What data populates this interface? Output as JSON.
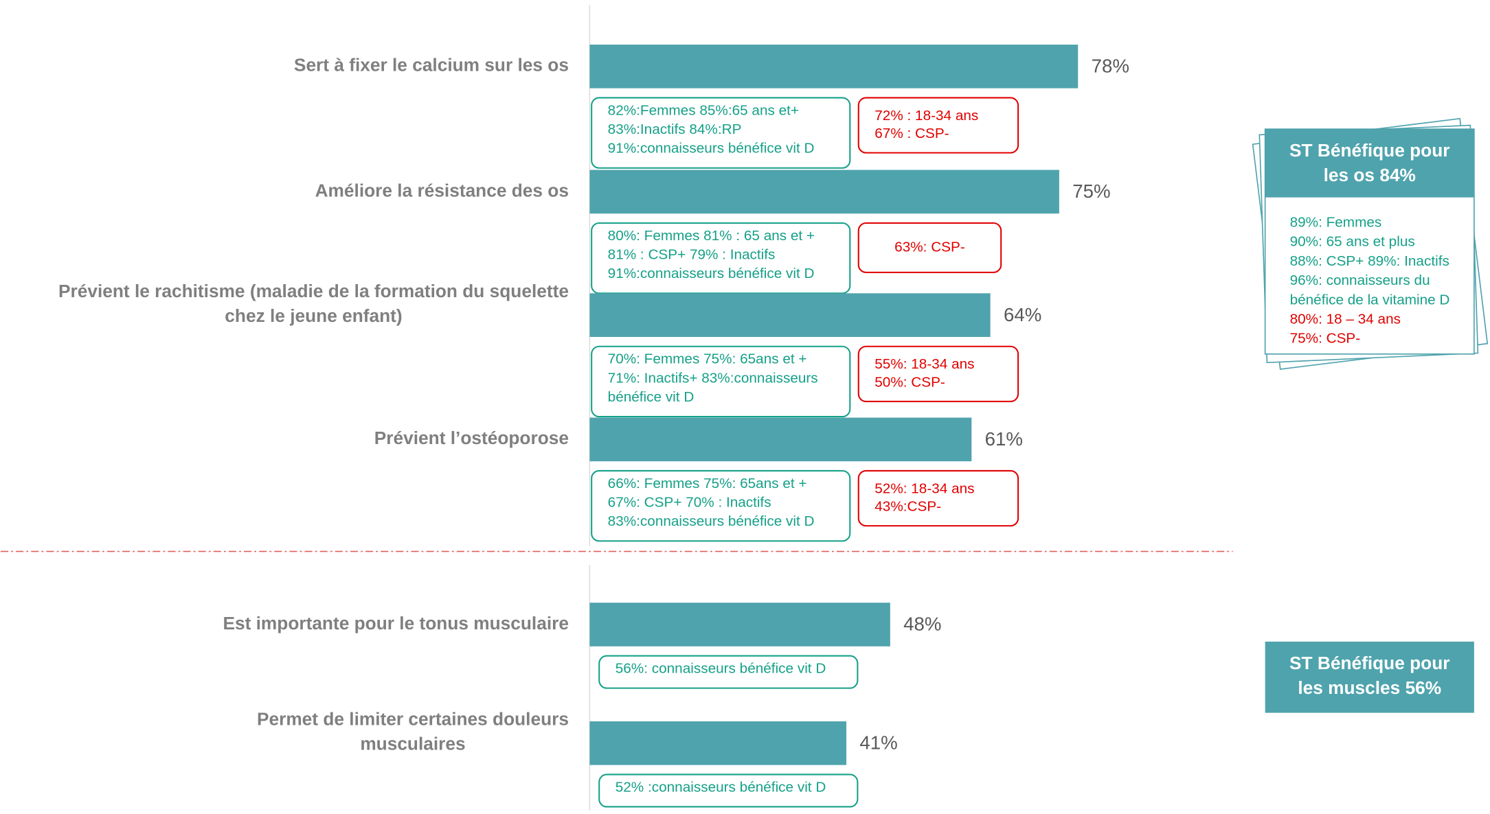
{
  "chart_data": {
    "type": "bar",
    "orientation": "horizontal",
    "categories": [
      [
        "Sert à fixer le calcium sur les os"
      ],
      [
        "Améliore la résistance des os"
      ],
      [
        "Prévient le rachitisme (maladie de la formation du squelette",
        "chez le jeune enfant)"
      ],
      [
        "Prévient l’ostéoporose"
      ],
      [
        "Est importante pour le tonus musculaire"
      ],
      [
        "Permet de limiter certaines douleurs",
        "musculaires"
      ]
    ],
    "values": [
      78,
      75,
      64,
      61,
      48,
      41
    ],
    "value_labels": [
      "78%",
      "75%",
      "64%",
      "61%",
      "48%",
      "41%"
    ],
    "color": "#4fa3ad",
    "xlim": [
      0,
      100
    ]
  },
  "annotations": [
    {
      "positive": [
        "82%:Femmes  85%:65 ans et+",
        "83%:Inactifs    84%:RP",
        "91%:connaisseurs bénéfice vit D"
      ],
      "negative": [
        "72% : 18-34 ans",
        "67% : CSP-"
      ]
    },
    {
      "positive": [
        "80%: Femmes  81% : 65 ans et +",
        "81% : CSP+   79% : Inactifs",
        "91%:connaisseurs bénéfice vit D"
      ],
      "negative": [
        "63%: CSP-"
      ]
    },
    {
      "positive": [
        "70%: Femmes 75%: 65ans et +",
        "71%: Inactifs+ 83%:connaisseurs",
        "bénéfice vit D"
      ],
      "negative": [
        "55%: 18-34 ans",
        "50%: CSP-"
      ]
    },
    {
      "positive": [
        "66%: Femmes 75%: 65ans et +",
        "67%: CSP+  70% : Inactifs",
        "83%:connaisseurs bénéfice vit D"
      ],
      "negative": [
        "52%: 18-34 ans",
        "43%:CSP-"
      ]
    },
    {
      "positive": [
        "56%: connaisseurs bénéfice vit D"
      ],
      "negative": []
    },
    {
      "positive": [
        "52% :connaisseurs bénéfice vit D"
      ],
      "negative": []
    }
  ],
  "summaries": [
    {
      "title": [
        "ST Bénéfique pour",
        "les os 84%"
      ],
      "positive": [
        "89%: Femmes",
        "90%: 65 ans et plus",
        "88%: CSP+ 89%: Inactifs",
        "96%: connaisseurs du",
        "bénéfice de la vitamine D"
      ],
      "negative": [
        "80%: 18 – 34 ans",
        "75%: CSP-"
      ]
    },
    {
      "title": [
        "ST Bénéfique pour",
        "les muscles 56%"
      ],
      "positive": [],
      "negative": []
    }
  ]
}
